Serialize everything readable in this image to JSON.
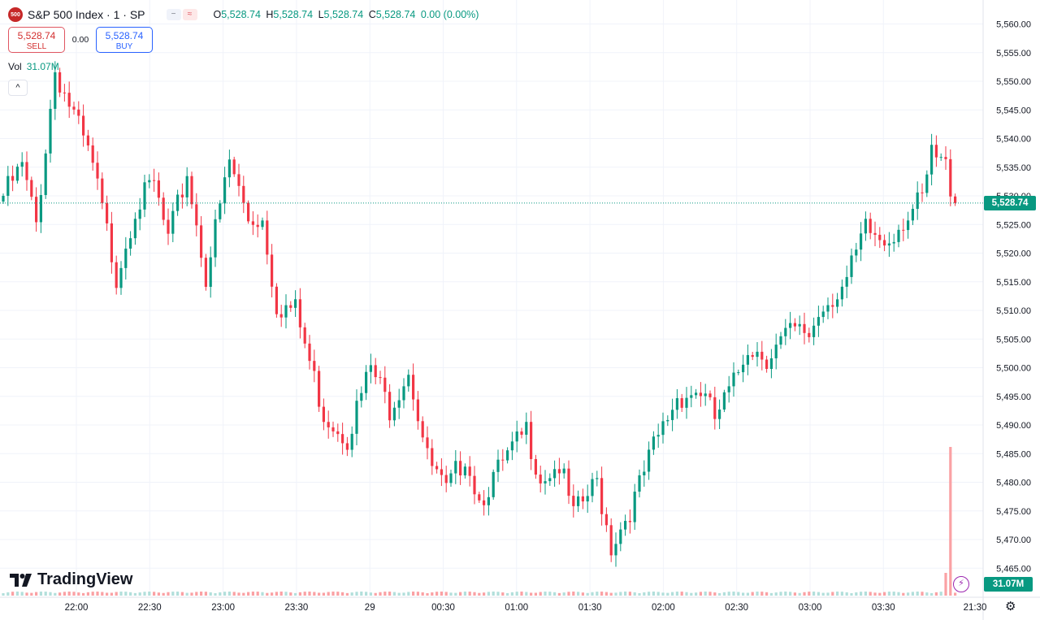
{
  "header": {
    "symbol_badge": "500",
    "symbol_title": "S&P 500 Index · 1 · SP",
    "o_label": "O",
    "o_value": "5,528.74",
    "h_label": "H",
    "h_value": "5,528.74",
    "l_label": "L",
    "l_value": "5,528.74",
    "c_label": "C",
    "c_value": "5,528.74",
    "change": "0.00 (0.00%)",
    "pill_icons": [
      "minus-icon",
      "approx-icon"
    ]
  },
  "trade": {
    "sell_price": "5,528.74",
    "sell_label": "SELL",
    "spread": "0.00",
    "buy_price": "5,528.74",
    "buy_label": "BUY"
  },
  "volume": {
    "label": "Vol",
    "value": "31.07M"
  },
  "last_price_tag": "5,528.74",
  "volume_tag": "31.07M",
  "logo_text": "TradingView",
  "colors": {
    "up": "#089981",
    "down": "#f23645",
    "up_wick": "#0b8a6f",
    "vol_up": "#b2dfdb",
    "vol_down": "#faa1a4",
    "grid": "#f0f3fa"
  },
  "chart_data": {
    "type": "candlestick",
    "title": "S&P 500 Index · 1 · SP",
    "y_ticks": [
      "5,465.00",
      "5,470.00",
      "5,475.00",
      "5,480.00",
      "5,485.00",
      "5,490.00",
      "5,495.00",
      "5,500.00",
      "5,505.00",
      "5,510.00",
      "5,515.00",
      "5,520.00",
      "5,525.00",
      "5,530.00",
      "5,535.00",
      "5,540.00",
      "5,545.00",
      "5,550.00",
      "5,555.00",
      "5,560.00"
    ],
    "x_ticks": [
      "22:00",
      "22:30",
      "23:00",
      "23:30",
      "29",
      "00:30",
      "01:00",
      "01:30",
      "02:00",
      "02:30",
      "03:00",
      "03:30",
      "21:30"
    ],
    "ylim": [
      5462.5,
      5562.5
    ],
    "grid": true,
    "last_price": 5528.74,
    "price_path": [
      [
        0,
        5530
      ],
      [
        4,
        5535
      ],
      [
        7,
        5525
      ],
      [
        11,
        5552
      ],
      [
        15,
        5544
      ],
      [
        19,
        5535
      ],
      [
        24,
        5516
      ],
      [
        28,
        5528
      ],
      [
        32,
        5532
      ],
      [
        35,
        5522
      ],
      [
        39,
        5534
      ],
      [
        43,
        5516
      ],
      [
        46,
        5528
      ],
      [
        48,
        5536
      ],
      [
        52,
        5526
      ],
      [
        55,
        5526
      ],
      [
        58,
        5511
      ],
      [
        62,
        5510
      ],
      [
        68,
        5492
      ],
      [
        73,
        5488
      ],
      [
        78,
        5500
      ],
      [
        82,
        5493
      ],
      [
        86,
        5500
      ],
      [
        90,
        5484
      ],
      [
        94,
        5478
      ],
      [
        98,
        5485
      ],
      [
        101,
        5477
      ],
      [
        106,
        5483
      ],
      [
        111,
        5489
      ],
      [
        114,
        5481
      ],
      [
        118,
        5483
      ],
      [
        121,
        5474
      ],
      [
        126,
        5480
      ],
      [
        129,
        5469
      ],
      [
        134,
        5477
      ],
      [
        138,
        5486
      ],
      [
        143,
        5495
      ],
      [
        148,
        5496
      ],
      [
        151,
        5491
      ],
      [
        155,
        5497
      ],
      [
        158,
        5504
      ],
      [
        162,
        5502
      ],
      [
        167,
        5506
      ],
      [
        171,
        5506
      ],
      [
        174,
        5511
      ],
      [
        179,
        5515
      ],
      [
        183,
        5524
      ],
      [
        187,
        5522
      ],
      [
        191,
        5526
      ],
      [
        195,
        5529
      ],
      [
        197,
        5537
      ],
      [
        200,
        5535
      ],
      [
        202,
        5528.74
      ]
    ],
    "volume_spike": {
      "bar_index": 201,
      "value": "31.07M"
    }
  }
}
